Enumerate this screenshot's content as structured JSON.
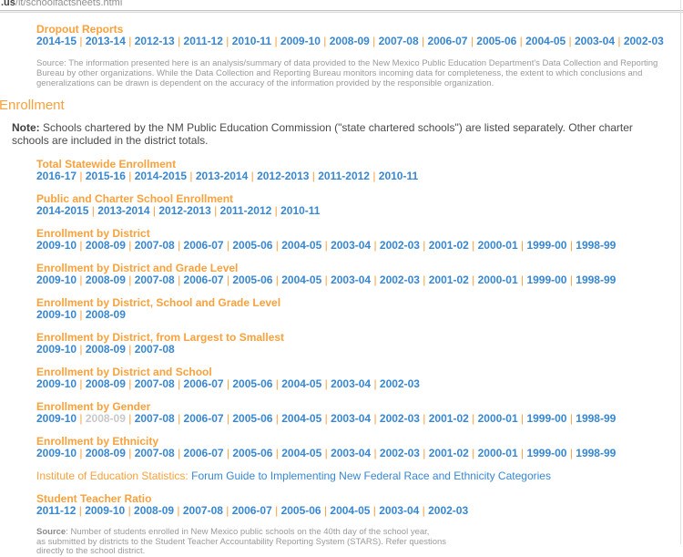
{
  "colors": {
    "orange": "#F9A13C",
    "blue": "#3787D1",
    "disabled": "#C8C8C8"
  },
  "address_bar": {
    "domain": ".us",
    "path": "/it/schoolfactsheets.html"
  },
  "dropout_section": {
    "title": "Dropout Reports",
    "years": [
      "2014-15",
      "2013-14",
      "2012-13",
      "2011-12",
      "2010-11",
      "2009-10",
      "2008-09",
      "2007-08",
      "2006-07",
      "2005-06",
      "2004-05",
      "2003-04",
      "2002-03"
    ]
  },
  "dropout_source": "Source: The information presented here is an analysis/summary of data provided to the New Mexico Public Education Department's Data Collection and Reporting Bureau by other organizations. While the Data Collection and Reporting Bureau monitors incoming data for completeness, the extent to which conclusions and generalizations can be drawn is dependent on the accuracy of the information provided by the responsible organization.",
  "enrollment": {
    "heading": "Enrollment",
    "note_label": "Note:",
    "note_text": " Schools chartered by the NM Public Education Commission (\"state chartered schools\") are listed separately. Other charter schools are included in the district totals.",
    "sections": [
      {
        "title": "Total Statewide Enrollment",
        "years": [
          "2016-17",
          "2015-16",
          "2014-2015",
          "2013-2014",
          "2012-2013",
          "2011-2012",
          "2010-11"
        ]
      },
      {
        "title": "Public and Charter School Enrollment",
        "years": [
          "2014-2015",
          "2013-2014",
          "2012-2013",
          "2011-2012",
          "2010-11"
        ]
      },
      {
        "title": "Enrollment by District",
        "years": [
          "2009-10",
          "2008-09",
          "2007-08",
          "2006-07",
          "2005-06",
          "2004-05",
          "2003-04",
          "2002-03",
          "2001-02",
          "2000-01",
          "1999-00",
          "1998-99"
        ]
      },
      {
        "title": "Enrollment by District and Grade Level",
        "years": [
          "2009-10",
          "2008-09",
          "2007-08",
          "2006-07",
          "2005-06",
          "2004-05",
          "2003-04",
          "2002-03",
          "2001-02",
          "2000-01",
          "1999-00",
          "1998-99"
        ]
      },
      {
        "title": "Enrollment by District, School and Grade Level",
        "years": [
          "2009-10",
          "2008-09"
        ]
      },
      {
        "title": "Enrollment by District, from Largest to Smallest",
        "years": [
          "2009-10",
          "2008-09",
          "2007-08"
        ]
      },
      {
        "title": "Enrollment by District and School",
        "years": [
          "2009-10",
          "2008-09",
          "2007-08",
          "2006-07",
          "2005-06",
          "2004-05",
          "2003-04",
          "2002-03"
        ]
      },
      {
        "title": "Enrollment by Gender",
        "years": [
          "2009-10",
          {
            "label": "2008-09",
            "disabled": true
          },
          "2007-08",
          "2006-07",
          "2005-06",
          "2004-05",
          "2003-04",
          "2002-03",
          "2001-02",
          "2000-01",
          "1999-00",
          "1998-99"
        ]
      },
      {
        "title": "Enrollment by Ethnicity",
        "years": [
          "2009-10",
          "2008-09",
          "2007-08",
          "2006-07",
          "2005-06",
          "2004-05",
          "2003-04",
          "2002-03",
          "2001-02",
          "2000-01",
          "1999-00",
          "1998-99"
        ]
      }
    ]
  },
  "institute_line": {
    "label": "Institute of Education Statistics:",
    "link_text": "Forum Guide to Implementing New Federal Race and Ethnicity Categories"
  },
  "student_teacher_section": {
    "title": "Student Teacher Ratio",
    "years": [
      "2011-12",
      "2009-10",
      "2008-09",
      "2007-08",
      "2006-07",
      "2005-06",
      "2004-05",
      "2003-04",
      "2002-03"
    ]
  },
  "bottom_source": {
    "label": "Source",
    "rest": ": Number of students enrolled in New Mexico public schools on the 40th day of the school year,\nas submitted by districts to the Student Teacher Accountability Reporting System (STARS). Refer questions\ndirectly to the school district."
  }
}
